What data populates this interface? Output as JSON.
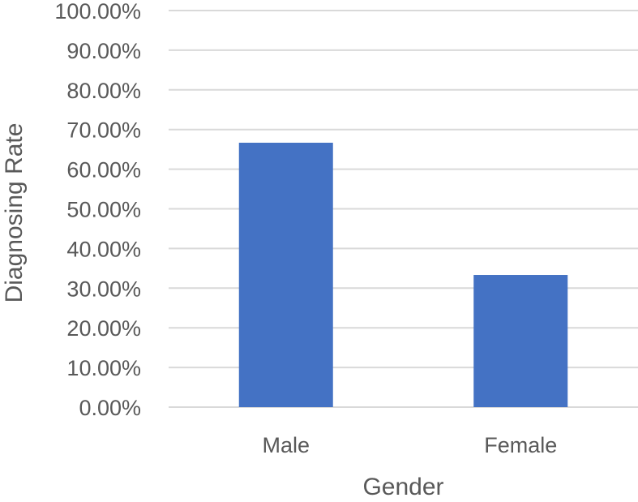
{
  "chart_data": {
    "type": "bar",
    "categories": [
      "Male",
      "Female"
    ],
    "values": [
      66.67,
      33.33
    ],
    "value_format": "percent",
    "title": "",
    "xlabel": "Gender",
    "ylabel": "Diagnosing Rate",
    "ylim": [
      0,
      100
    ],
    "y_tick_step": 10,
    "y_tick_labels": [
      "0.00%",
      "10.00%",
      "20.00%",
      "30.00%",
      "40.00%",
      "50.00%",
      "60.00%",
      "70.00%",
      "80.00%",
      "90.00%",
      "100.00%"
    ],
    "grid": true,
    "legend": "none",
    "bar_color": "#4472c4",
    "grid_color": "#d9d9d9",
    "text_color": "#595959"
  }
}
